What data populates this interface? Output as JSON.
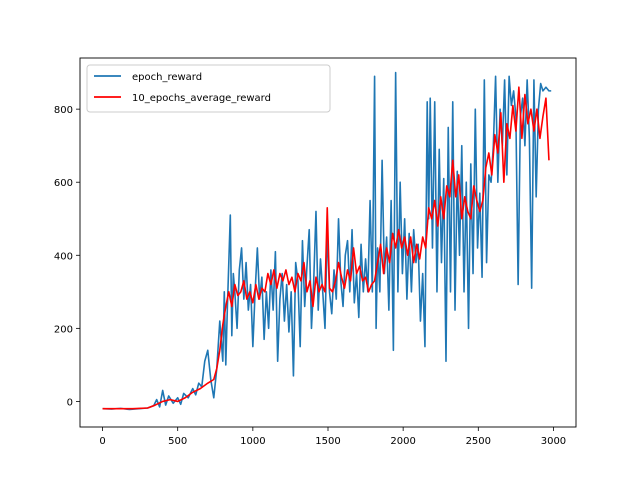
{
  "chart_data": {
    "type": "line",
    "title": "",
    "xlabel": "",
    "ylabel": "",
    "xlim": [
      -150,
      3150
    ],
    "ylim": [
      -70,
      940
    ],
    "xticks": [
      0,
      500,
      1000,
      1500,
      2000,
      2500,
      3000
    ],
    "yticks": [
      0,
      200,
      400,
      600,
      800
    ],
    "legend_position": "top-left",
    "series": [
      {
        "name": "epoch_reward",
        "color": "#1f77b4",
        "points": [
          [
            0,
            -20
          ],
          [
            60,
            -21
          ],
          [
            120,
            -19
          ],
          [
            180,
            -22
          ],
          [
            240,
            -20
          ],
          [
            300,
            -18
          ],
          [
            340,
            -12
          ],
          [
            360,
            5
          ],
          [
            380,
            -15
          ],
          [
            400,
            30
          ],
          [
            420,
            -10
          ],
          [
            440,
            15
          ],
          [
            470,
            -5
          ],
          [
            500,
            10
          ],
          [
            520,
            -8
          ],
          [
            540,
            22
          ],
          [
            570,
            10
          ],
          [
            600,
            35
          ],
          [
            620,
            18
          ],
          [
            640,
            50
          ],
          [
            660,
            40
          ],
          [
            680,
            110
          ],
          [
            700,
            140
          ],
          [
            720,
            60
          ],
          [
            740,
            10
          ],
          [
            760,
            90
          ],
          [
            780,
            220
          ],
          [
            800,
            110
          ],
          [
            810,
            300
          ],
          [
            820,
            100
          ],
          [
            830,
            250
          ],
          [
            850,
            510
          ],
          [
            860,
            180
          ],
          [
            870,
            350
          ],
          [
            880,
            300
          ],
          [
            895,
            200
          ],
          [
            910,
            360
          ],
          [
            925,
            420
          ],
          [
            940,
            280
          ],
          [
            955,
            380
          ],
          [
            970,
            250
          ],
          [
            985,
            320
          ],
          [
            1000,
            150
          ],
          [
            1015,
            300
          ],
          [
            1030,
            420
          ],
          [
            1045,
            280
          ],
          [
            1060,
            340
          ],
          [
            1075,
            170
          ],
          [
            1090,
            300
          ],
          [
            1105,
            200
          ],
          [
            1120,
            360
          ],
          [
            1135,
            250
          ],
          [
            1150,
            410
          ],
          [
            1165,
            110
          ],
          [
            1180,
            280
          ],
          [
            1195,
            350
          ],
          [
            1210,
            220
          ],
          [
            1225,
            320
          ],
          [
            1240,
            190
          ],
          [
            1255,
            300
          ],
          [
            1270,
            70
          ],
          [
            1285,
            380
          ],
          [
            1300,
            330
          ],
          [
            1315,
            150
          ],
          [
            1330,
            440
          ],
          [
            1345,
            260
          ],
          [
            1360,
            370
          ],
          [
            1375,
            470
          ],
          [
            1390,
            200
          ],
          [
            1405,
            330
          ],
          [
            1420,
            520
          ],
          [
            1435,
            250
          ],
          [
            1450,
            390
          ],
          [
            1465,
            300
          ],
          [
            1480,
            200
          ],
          [
            1495,
            470
          ],
          [
            1510,
            300
          ],
          [
            1525,
            240
          ],
          [
            1540,
            360
          ],
          [
            1555,
            280
          ],
          [
            1570,
            500
          ],
          [
            1585,
            330
          ],
          [
            1600,
            260
          ],
          [
            1615,
            400
          ],
          [
            1630,
            440
          ],
          [
            1645,
            300
          ],
          [
            1660,
            470
          ],
          [
            1675,
            270
          ],
          [
            1690,
            350
          ],
          [
            1705,
            230
          ],
          [
            1720,
            430
          ],
          [
            1735,
            300
          ],
          [
            1750,
            390
          ],
          [
            1765,
            300
          ],
          [
            1780,
            550
          ],
          [
            1795,
            300
          ],
          [
            1810,
            890
          ],
          [
            1820,
            200
          ],
          [
            1830,
            420
          ],
          [
            1845,
            300
          ],
          [
            1860,
            660
          ],
          [
            1875,
            350
          ],
          [
            1890,
            450
          ],
          [
            1905,
            250
          ],
          [
            1920,
            550
          ],
          [
            1935,
            140
          ],
          [
            1950,
            900
          ],
          [
            1965,
            300
          ],
          [
            1980,
            600
          ],
          [
            1995,
            350
          ],
          [
            2010,
            500
          ],
          [
            2025,
            280
          ],
          [
            2040,
            460
          ],
          [
            2055,
            300
          ],
          [
            2070,
            470
          ],
          [
            2085,
            380
          ],
          [
            2100,
            430
          ],
          [
            2115,
            220
          ],
          [
            2130,
            350
          ],
          [
            2145,
            150
          ],
          [
            2160,
            820
          ],
          [
            2170,
            500
          ],
          [
            2180,
            830
          ],
          [
            2195,
            420
          ],
          [
            2210,
            820
          ],
          [
            2225,
            300
          ],
          [
            2240,
            690
          ],
          [
            2255,
            380
          ],
          [
            2270,
            610
          ],
          [
            2285,
            110
          ],
          [
            2300,
            750
          ],
          [
            2315,
            300
          ],
          [
            2330,
            820
          ],
          [
            2345,
            250
          ],
          [
            2360,
            630
          ],
          [
            2375,
            400
          ],
          [
            2390,
            700
          ],
          [
            2405,
            300
          ],
          [
            2420,
            600
          ],
          [
            2435,
            200
          ],
          [
            2450,
            650
          ],
          [
            2465,
            350
          ],
          [
            2480,
            800
          ],
          [
            2495,
            420
          ],
          [
            2510,
            570
          ],
          [
            2525,
            340
          ],
          [
            2540,
            880
          ],
          [
            2555,
            380
          ],
          [
            2570,
            620
          ],
          [
            2585,
            600
          ],
          [
            2600,
            700
          ],
          [
            2615,
            890
          ],
          [
            2630,
            600
          ],
          [
            2645,
            800
          ],
          [
            2660,
            700
          ],
          [
            2675,
            880
          ],
          [
            2690,
            620
          ],
          [
            2705,
            890
          ],
          [
            2720,
            810
          ],
          [
            2735,
            850
          ],
          [
            2750,
            780
          ],
          [
            2765,
            320
          ],
          [
            2780,
            780
          ],
          [
            2795,
            830
          ],
          [
            2810,
            700
          ],
          [
            2825,
            880
          ],
          [
            2840,
            720
          ],
          [
            2855,
            310
          ],
          [
            2870,
            880
          ],
          [
            2885,
            560
          ],
          [
            2900,
            800
          ],
          [
            2915,
            870
          ],
          [
            2930,
            850
          ],
          [
            2950,
            860
          ],
          [
            2970,
            850
          ],
          [
            2985,
            850
          ]
        ]
      },
      {
        "name": "10_epochs_average_reward",
        "color": "#ff0000",
        "points": [
          [
            0,
            -20
          ],
          [
            100,
            -20
          ],
          [
            200,
            -20
          ],
          [
            300,
            -18
          ],
          [
            350,
            -10
          ],
          [
            400,
            0
          ],
          [
            450,
            5
          ],
          [
            500,
            0
          ],
          [
            550,
            10
          ],
          [
            600,
            25
          ],
          [
            650,
            35
          ],
          [
            700,
            50
          ],
          [
            740,
            60
          ],
          [
            760,
            90
          ],
          [
            780,
            140
          ],
          [
            800,
            210
          ],
          [
            820,
            260
          ],
          [
            840,
            300
          ],
          [
            860,
            260
          ],
          [
            880,
            320
          ],
          [
            900,
            290
          ],
          [
            920,
            300
          ],
          [
            940,
            330
          ],
          [
            960,
            280
          ],
          [
            980,
            300
          ],
          [
            1000,
            270
          ],
          [
            1020,
            320
          ],
          [
            1040,
            280
          ],
          [
            1060,
            310
          ],
          [
            1080,
            300
          ],
          [
            1100,
            350
          ],
          [
            1120,
            320
          ],
          [
            1140,
            360
          ],
          [
            1160,
            310
          ],
          [
            1180,
            350
          ],
          [
            1200,
            330
          ],
          [
            1220,
            360
          ],
          [
            1240,
            320
          ],
          [
            1260,
            340
          ],
          [
            1280,
            300
          ],
          [
            1300,
            350
          ],
          [
            1320,
            330
          ],
          [
            1340,
            380
          ],
          [
            1360,
            300
          ],
          [
            1380,
            330
          ],
          [
            1400,
            260
          ],
          [
            1420,
            340
          ],
          [
            1440,
            300
          ],
          [
            1460,
            320
          ],
          [
            1480,
            300
          ],
          [
            1495,
            530
          ],
          [
            1510,
            310
          ],
          [
            1530,
            300
          ],
          [
            1550,
            330
          ],
          [
            1570,
            380
          ],
          [
            1590,
            340
          ],
          [
            1610,
            310
          ],
          [
            1630,
            360
          ],
          [
            1650,
            330
          ],
          [
            1670,
            420
          ],
          [
            1690,
            350
          ],
          [
            1710,
            370
          ],
          [
            1730,
            330
          ],
          [
            1750,
            340
          ],
          [
            1770,
            300
          ],
          [
            1790,
            320
          ],
          [
            1810,
            330
          ],
          [
            1830,
            380
          ],
          [
            1850,
            430
          ],
          [
            1870,
            350
          ],
          [
            1890,
            420
          ],
          [
            1910,
            380
          ],
          [
            1930,
            460
          ],
          [
            1950,
            420
          ],
          [
            1970,
            470
          ],
          [
            1990,
            420
          ],
          [
            2010,
            450
          ],
          [
            2030,
            400
          ],
          [
            2050,
            450
          ],
          [
            2070,
            380
          ],
          [
            2090,
            430
          ],
          [
            2110,
            390
          ],
          [
            2130,
            450
          ],
          [
            2150,
            420
          ],
          [
            2170,
            530
          ],
          [
            2190,
            500
          ],
          [
            2210,
            550
          ],
          [
            2230,
            480
          ],
          [
            2250,
            560
          ],
          [
            2270,
            500
          ],
          [
            2290,
            590
          ],
          [
            2310,
            560
          ],
          [
            2330,
            660
          ],
          [
            2350,
            560
          ],
          [
            2370,
            620
          ],
          [
            2390,
            500
          ],
          [
            2410,
            560
          ],
          [
            2430,
            520
          ],
          [
            2450,
            500
          ],
          [
            2470,
            590
          ],
          [
            2490,
            550
          ],
          [
            2510,
            520
          ],
          [
            2530,
            550
          ],
          [
            2550,
            640
          ],
          [
            2570,
            680
          ],
          [
            2590,
            620
          ],
          [
            2610,
            730
          ],
          [
            2630,
            680
          ],
          [
            2650,
            790
          ],
          [
            2670,
            600
          ],
          [
            2690,
            760
          ],
          [
            2710,
            720
          ],
          [
            2730,
            810
          ],
          [
            2750,
            740
          ],
          [
            2770,
            860
          ],
          [
            2790,
            720
          ],
          [
            2810,
            840
          ],
          [
            2830,
            760
          ],
          [
            2850,
            800
          ],
          [
            2870,
            740
          ],
          [
            2890,
            800
          ],
          [
            2910,
            720
          ],
          [
            2930,
            780
          ],
          [
            2950,
            830
          ],
          [
            2970,
            660
          ]
        ]
      }
    ]
  }
}
